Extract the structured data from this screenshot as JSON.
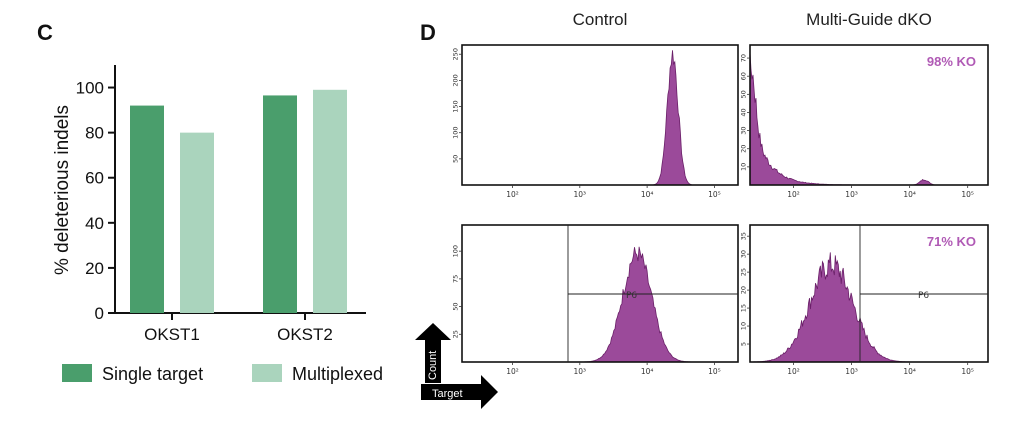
{
  "panel_c": {
    "label": "C",
    "chart_data": {
      "type": "bar",
      "categories": [
        "OKST1",
        "OKST2"
      ],
      "series": [
        {
          "name": "Single target",
          "color": "#4a9e6c",
          "values": [
            92,
            96.5
          ]
        },
        {
          "name": "Multiplexed",
          "color": "#aad4bd",
          "values": [
            80,
            99
          ]
        }
      ],
      "ylabel": "% deleterious indels",
      "xlabel": "",
      "ylim": [
        0,
        110
      ],
      "yticks": [
        "0",
        "20",
        "40",
        "60",
        "80",
        "100"
      ],
      "legend": [
        "Single target",
        "Multiplexed"
      ]
    }
  },
  "panel_d": {
    "label": "D",
    "columns": [
      "Control",
      "Multi-Guide dKO"
    ],
    "axis_arrows": {
      "y": "Count",
      "x": "Target"
    },
    "gate_label": "P6",
    "histogram_color": "#9b4a9a",
    "histograms": [
      {
        "id": "top-control",
        "yticks": [
          "50",
          "100",
          "150",
          "200",
          "250"
        ],
        "ymax": 260,
        "xticks": [
          "10²",
          "10³",
          "10⁴",
          "10⁵"
        ],
        "peaks": [
          {
            "center": 4.38,
            "width": 0.12,
            "height": 250
          }
        ],
        "knockout": null
      },
      {
        "id": "top-dko",
        "yticks": [
          "10",
          "20",
          "30",
          "40",
          "50",
          "60",
          "70"
        ],
        "ymax": 75,
        "xticks": [
          "10²",
          "10³",
          "10⁴",
          "10⁵"
        ],
        "peaks": [
          {
            "center": 1.3,
            "width": 0.1,
            "height": 72,
            "decay": true
          }
        ],
        "knockout": "98% KO"
      },
      {
        "id": "bottom-control",
        "yticks": [
          "25",
          "50",
          "75",
          "100"
        ],
        "ymax": 120,
        "xticks": [
          "10²",
          "10³",
          "10⁴",
          "10⁵"
        ],
        "peaks": [
          {
            "center": 3.85,
            "width": 0.32,
            "height": 98
          }
        ],
        "gate": true,
        "knockout": null
      },
      {
        "id": "bottom-dko",
        "yticks": [
          "5",
          "10",
          "15",
          "20",
          "25",
          "30",
          "35"
        ],
        "ymax": 37,
        "xticks": [
          "10²",
          "10³",
          "10⁴",
          "10⁵"
        ],
        "peaks": [
          {
            "center": 2.65,
            "width": 0.55,
            "height": 27
          }
        ],
        "gate": true,
        "knockout": "71% KO"
      }
    ]
  }
}
